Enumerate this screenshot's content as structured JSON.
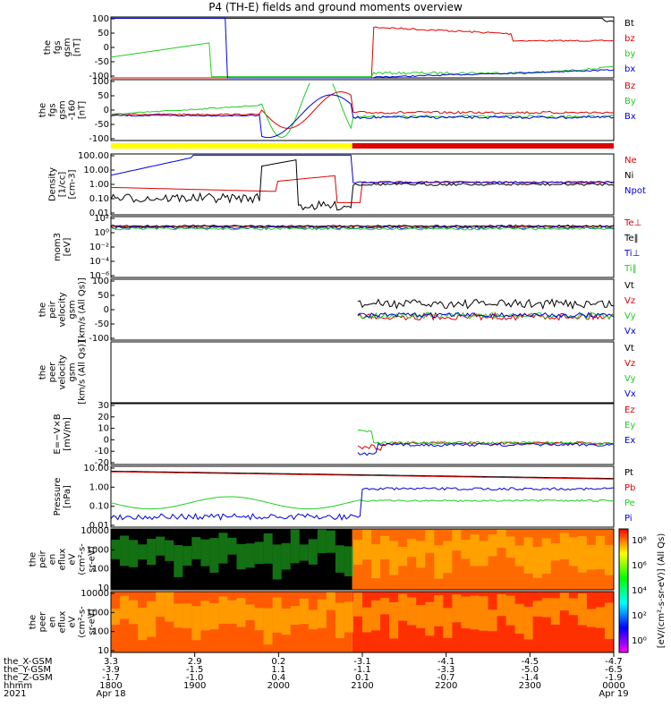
{
  "title": "P4 (TH-E) fields and ground moments overview",
  "colors": {
    "black": "#000000",
    "red": "#e00000",
    "green": "#22cc22",
    "blue": "#0000dd",
    "yellow": "#ffff00"
  },
  "chart_data": [
    {
      "type": "line",
      "ylabel": [
        "the",
        "fgs",
        "gsm",
        "[nT]"
      ],
      "yticks": [
        "100",
        "50",
        "0",
        "-50",
        "-100"
      ],
      "ylim": [
        -100,
        100
      ],
      "series": [
        {
          "name": "Bt",
          "color": "black"
        },
        {
          "name": "bz",
          "color": "red"
        },
        {
          "name": "by",
          "color": "green"
        },
        {
          "name": "bx",
          "color": "blue"
        }
      ]
    },
    {
      "type": "line",
      "ylabel": [
        "the",
        "fgs",
        "gsm",
        "-160",
        "[nT]"
      ],
      "yticks": [
        "100",
        "50",
        "0",
        "-50",
        "-100"
      ],
      "ylim": [
        -100,
        100
      ],
      "series": [
        {
          "name": "Bz",
          "color": "red"
        },
        {
          "name": "By",
          "color": "green"
        },
        {
          "name": "Bx",
          "color": "blue"
        }
      ]
    },
    {
      "type": "line",
      "ylabel": [
        "Density",
        "[1/cc]",
        "[cm-3]"
      ],
      "yticks": [
        "100.00",
        "10.00",
        "1.00",
        "0.10",
        "0.01"
      ],
      "log": true,
      "series": [
        {
          "name": "Ne",
          "color": "red"
        },
        {
          "name": "Ni",
          "color": "black"
        },
        {
          "name": "Npot",
          "color": "blue"
        }
      ]
    },
    {
      "type": "line",
      "ylabel": [
        "mom3",
        "[eV]"
      ],
      "yticks": [
        "10²",
        "10⁰",
        "10⁻²",
        "10⁻⁴",
        "10⁻⁶"
      ],
      "log": true,
      "series": [
        {
          "name": "Te⊥",
          "color": "red"
        },
        {
          "name": "Te‖",
          "color": "black"
        },
        {
          "name": "Ti⊥",
          "color": "blue"
        },
        {
          "name": "Ti‖",
          "color": "green"
        }
      ]
    },
    {
      "type": "line",
      "ylabel": [
        "the",
        "peir",
        "velocity",
        "gsm",
        "[km/s (All Qs)]"
      ],
      "yticks": [
        "100",
        "50",
        "0",
        "-50",
        "-100"
      ],
      "ylim": [
        -100,
        100
      ],
      "series": [
        {
          "name": "Vt",
          "color": "black"
        },
        {
          "name": "Vz",
          "color": "red"
        },
        {
          "name": "Vy",
          "color": "green"
        },
        {
          "name": "Vx",
          "color": "blue"
        }
      ]
    },
    {
      "type": "line",
      "ylabel": [
        "the",
        "peer",
        "velocity",
        "gsm",
        "[km/s (All Qs)]"
      ],
      "yticks": [],
      "series": [
        {
          "name": "Vt",
          "color": "black"
        },
        {
          "name": "Vz",
          "color": "red"
        },
        {
          "name": "Vy",
          "color": "green"
        },
        {
          "name": "Vx",
          "color": "blue"
        }
      ]
    },
    {
      "type": "line",
      "ylabel": [
        "E=−V×B",
        "[mV/m]"
      ],
      "yticks": [
        "30",
        "20",
        "10",
        "0",
        "-10",
        "-20"
      ],
      "ylim": [
        -20,
        30
      ],
      "series": [
        {
          "name": "Ez",
          "color": "red"
        },
        {
          "name": "Ey",
          "color": "green"
        },
        {
          "name": "Ex",
          "color": "blue"
        }
      ]
    },
    {
      "type": "line",
      "ylabel": [
        "Pressure",
        "[nPa]"
      ],
      "yticks": [
        "10.00",
        "1.00",
        "0.10",
        "0.01"
      ],
      "log": true,
      "series": [
        {
          "name": "Pt",
          "color": "black"
        },
        {
          "name": "Pb",
          "color": "red"
        },
        {
          "name": "Pe",
          "color": "green"
        },
        {
          "name": "Pi",
          "color": "blue"
        }
      ]
    },
    {
      "type": "heatmap",
      "ylabel": [
        "the",
        "peir",
        "en",
        "eflux",
        "eV",
        "(cm²-s-",
        "sr-eV)"
      ],
      "yticks": [
        "10000",
        "1000",
        "100",
        "10"
      ]
    },
    {
      "type": "heatmap",
      "ylabel": [
        "the",
        "peer",
        "en",
        "eflux",
        "eV",
        "(cm²-s-",
        "sr-eV)"
      ],
      "yticks": [
        "10000",
        "1000",
        "100",
        "10"
      ]
    }
  ],
  "colorbar": {
    "label": "[eV/(cm²-s-sr-eV)] (All Qs)",
    "ticks": [
      "10⁸",
      "10⁶",
      "10⁴",
      "10²",
      "10⁰"
    ]
  },
  "xaxis": {
    "row_labels": [
      "the_X-GSM",
      "the_Y-GSM",
      "the_Z-GSM",
      "hhmm",
      "2021"
    ],
    "columns": [
      {
        "x": "3.3",
        "y": "-3.9",
        "z": "-1.7",
        "hhmm": "1800",
        "date": "Apr 18"
      },
      {
        "x": "2.9",
        "y": "-1.5",
        "z": "-1.0",
        "hhmm": "1900",
        "date": ""
      },
      {
        "x": "0.2",
        "y": "1.1",
        "z": "0.4",
        "hhmm": "2000",
        "date": ""
      },
      {
        "x": "-3.1",
        "y": "-1.1",
        "z": "0.1",
        "hhmm": "2100",
        "date": ""
      },
      {
        "x": "-4.1",
        "y": "-3.3",
        "z": "-0.7",
        "hhmm": "2200",
        "date": ""
      },
      {
        "x": "-4.5",
        "y": "-5.0",
        "z": "-1.4",
        "hhmm": "2300",
        "date": ""
      },
      {
        "x": "-4.7",
        "y": "-6.5",
        "z": "-1.9",
        "hhmm": "0000",
        "date": "Apr 19"
      }
    ]
  }
}
